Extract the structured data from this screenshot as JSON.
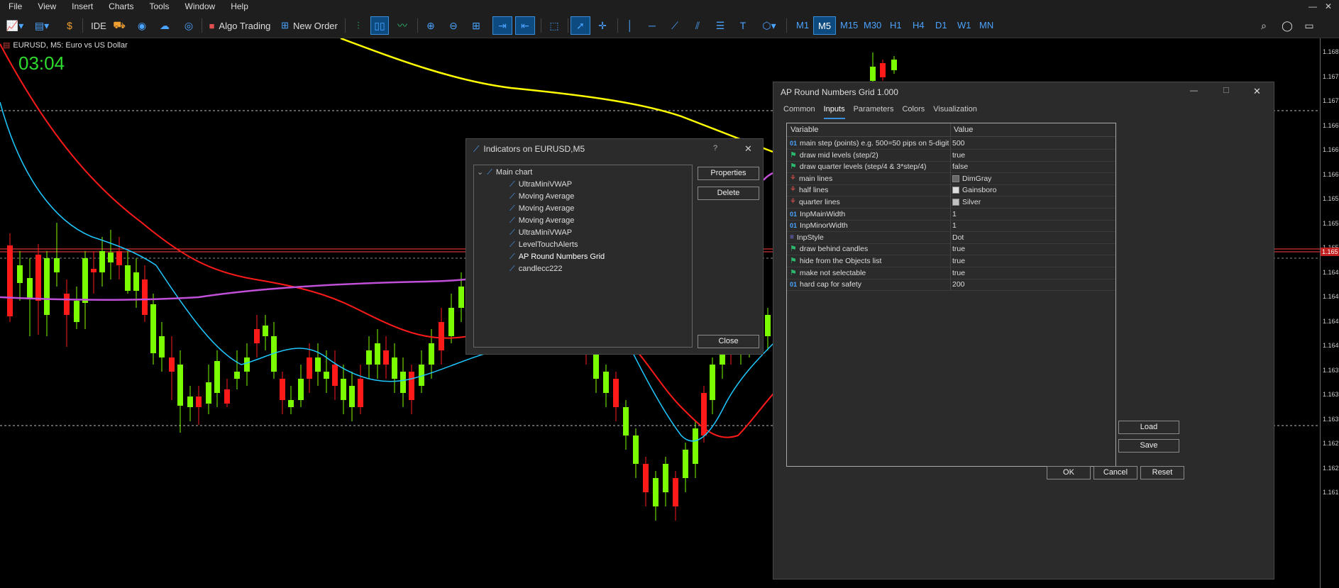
{
  "menu": [
    "File",
    "View",
    "Insert",
    "Charts",
    "Tools",
    "Window",
    "Help"
  ],
  "window_controls": {
    "minimize": "—",
    "close": "✕"
  },
  "toolbar": {
    "ide_label": "IDE",
    "algo_label": "Algo Trading",
    "new_order_label": "New Order",
    "timeframes": [
      "M1",
      "M5",
      "M15",
      "M30",
      "H1",
      "H4",
      "D1",
      "W1",
      "MN"
    ],
    "active_timeframe": "M5"
  },
  "chart": {
    "title": "EURUSD, M5:  Euro vs US Dollar",
    "timer": "03:04",
    "price_labels": [
      "1.168",
      "1.167",
      "1.167",
      "1.166",
      "1.166",
      "1.166",
      "1.165",
      "1.165",
      "1.165",
      "1.164",
      "1.164",
      "1.164",
      "1.164",
      "1.163",
      "1.163",
      "1.163",
      "1.162",
      "1.162",
      "1.161"
    ],
    "current_price_label": "1.165",
    "colors": {
      "bull": "#7cfc00",
      "bear": "#ff1a1a",
      "ma_red": "#ff1a1a",
      "ma_cyan": "#1ec8ff",
      "ma_yellow": "#ffff00",
      "ma_violet": "#c050d8"
    }
  },
  "indicators_dialog": {
    "title": "Indicators on EURUSD,M5",
    "help": "?",
    "close_x": "✕",
    "root": "Main chart",
    "items": [
      "UltraMiniVWAP",
      "Moving Average",
      "Moving Average",
      "Moving Average",
      "UltraMiniVWAP",
      "LevelTouchAlerts",
      "AP Round Numbers Grid",
      "candlecc222"
    ],
    "selected": "AP Round Numbers Grid",
    "buttons": {
      "properties": "Properties",
      "delete": "Delete",
      "close": "Close"
    }
  },
  "ap_dialog": {
    "title": "AP Round Numbers Grid 1.000",
    "tabs": [
      "Common",
      "Inputs",
      "Parameters",
      "Colors",
      "Visualization"
    ],
    "active_tab": "Inputs",
    "headers": {
      "variable": "Variable",
      "value": "Value"
    },
    "rows": [
      {
        "icon": "01",
        "variable": "main step (points) e.g. 500=50 pips on 5-digit FX",
        "value": "500"
      },
      {
        "icon": "flag",
        "variable": "draw mid levels (step/2)",
        "value": "true"
      },
      {
        "icon": "flag",
        "variable": "draw quarter levels (step/4 & 3*step/4)",
        "value": "false"
      },
      {
        "icon": "palette",
        "variable": "main lines",
        "value": "DimGray",
        "swatch": "#696969"
      },
      {
        "icon": "palette",
        "variable": "half lines",
        "value": "Gainsboro",
        "swatch": "#dcdcdc"
      },
      {
        "icon": "palette",
        "variable": "quarter lines",
        "value": "Silver",
        "swatch": "#c0c0c0"
      },
      {
        "icon": "01",
        "variable": "InpMainWidth",
        "value": "1"
      },
      {
        "icon": "01",
        "variable": "InpMinorWidth",
        "value": "1"
      },
      {
        "icon": "style",
        "variable": "InpStyle",
        "value": "Dot"
      },
      {
        "icon": "flag",
        "variable": "draw behind candles",
        "value": "true"
      },
      {
        "icon": "flag",
        "variable": "hide from the Objects list",
        "value": "true"
      },
      {
        "icon": "flag",
        "variable": "make not selectable",
        "value": "true"
      },
      {
        "icon": "01",
        "variable": "hard cap for safety",
        "value": "200"
      }
    ],
    "buttons": {
      "load": "Load",
      "save": "Save",
      "ok": "OK",
      "cancel": "Cancel",
      "reset": "Reset"
    },
    "window": {
      "minimize": "—",
      "maximize": "☐",
      "close": "✕"
    }
  }
}
